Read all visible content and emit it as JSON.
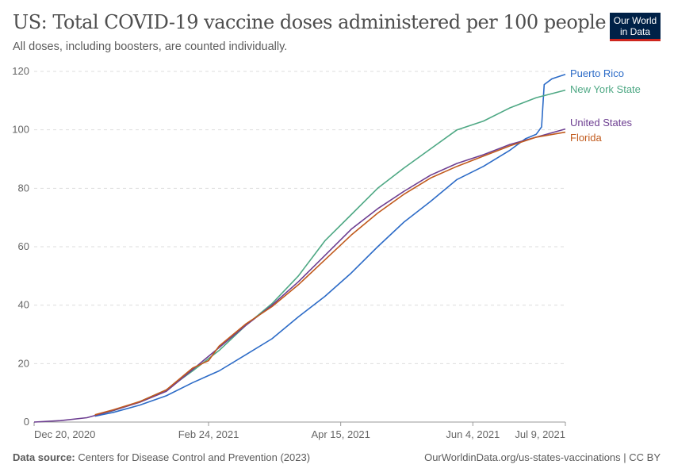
{
  "header": {
    "title": "US: Total COVID-19 vaccine doses administered per 100 people",
    "subtitle": "All doses, including boosters, are counted individually.",
    "logo_text": "Our World in Data"
  },
  "footer": {
    "source_label": "Data source:",
    "source": "Centers for Disease Control and Prevention (2023)",
    "url": "OurWorldinData.org/us-states-vaccinations | CC BY"
  },
  "chart_data": {
    "type": "line",
    "title": "US: Total COVID-19 vaccine doses administered per 100 people",
    "x_start": "2020-12-20",
    "x_end": "2021-07-09",
    "x_ticks": [
      "Dec 20, 2020",
      "Feb 24, 2021",
      "Apr 15, 2021",
      "Jun 4, 2021",
      "Jul 9, 2021"
    ],
    "x_tick_dates": [
      "2020-12-20",
      "2021-02-24",
      "2021-04-15",
      "2021-06-04",
      "2021-07-09"
    ],
    "y_ticks": [
      0,
      20,
      40,
      60,
      80,
      100,
      120
    ],
    "ylim": [
      0,
      120
    ],
    "grid": "horizontal dashed",
    "legend": "line-end labels, right",
    "series": [
      {
        "name": "Puerto Rico",
        "color": "#2c6bc7",
        "points": [
          [
            "2021-01-12",
            2.0
          ],
          [
            "2021-01-19",
            3.3
          ],
          [
            "2021-01-29",
            5.8
          ],
          [
            "2021-02-08",
            9
          ],
          [
            "2021-02-18",
            13.5
          ],
          [
            "2021-02-28",
            17.5
          ],
          [
            "2021-03-10",
            23
          ],
          [
            "2021-03-20",
            28.5
          ],
          [
            "2021-03-30",
            36
          ],
          [
            "2021-04-09",
            43
          ],
          [
            "2021-04-19",
            51
          ],
          [
            "2021-04-29",
            60
          ],
          [
            "2021-05-09",
            68.5
          ],
          [
            "2021-05-19",
            75.5
          ],
          [
            "2021-05-29",
            83
          ],
          [
            "2021-06-08",
            87.5
          ],
          [
            "2021-06-18",
            93
          ],
          [
            "2021-06-24",
            97
          ],
          [
            "2021-06-28",
            98.5
          ],
          [
            "2021-06-30",
            101
          ],
          [
            "2021-07-01",
            115.5
          ],
          [
            "2021-07-04",
            117.5
          ],
          [
            "2021-07-09",
            119
          ]
        ]
      },
      {
        "name": "New York State",
        "color": "#4ea884",
        "points": [
          [
            "2021-01-12",
            2.3
          ],
          [
            "2021-01-19",
            3.9
          ],
          [
            "2021-01-29",
            7
          ],
          [
            "2021-02-08",
            11
          ],
          [
            "2021-02-18",
            17.5
          ],
          [
            "2021-02-28",
            24.5
          ],
          [
            "2021-03-10",
            33
          ],
          [
            "2021-03-20",
            40.5
          ],
          [
            "2021-03-30",
            50
          ],
          [
            "2021-04-09",
            62
          ],
          [
            "2021-04-19",
            71
          ],
          [
            "2021-04-29",
            80
          ],
          [
            "2021-05-09",
            87
          ],
          [
            "2021-05-19",
            93.5
          ],
          [
            "2021-05-29",
            100
          ],
          [
            "2021-06-08",
            103
          ],
          [
            "2021-06-18",
            107.5
          ],
          [
            "2021-06-28",
            111
          ],
          [
            "2021-07-09",
            113.6
          ]
        ]
      },
      {
        "name": "United States",
        "color": "#6d3e91",
        "points": [
          [
            "2020-12-20",
            0
          ],
          [
            "2020-12-30",
            0.5
          ],
          [
            "2021-01-09",
            1.5
          ],
          [
            "2021-01-19",
            4
          ],
          [
            "2021-01-29",
            6.8
          ],
          [
            "2021-02-08",
            10.5
          ],
          [
            "2021-02-18",
            18
          ],
          [
            "2021-02-28",
            25.5
          ],
          [
            "2021-03-10",
            33
          ],
          [
            "2021-03-20",
            40
          ],
          [
            "2021-03-30",
            48
          ],
          [
            "2021-04-09",
            57
          ],
          [
            "2021-04-19",
            66
          ],
          [
            "2021-04-29",
            73
          ],
          [
            "2021-05-09",
            79
          ],
          [
            "2021-05-19",
            84.5
          ],
          [
            "2021-05-29",
            88.5
          ],
          [
            "2021-06-08",
            91.5
          ],
          [
            "2021-06-18",
            95
          ],
          [
            "2021-06-28",
            97.5
          ],
          [
            "2021-07-09",
            100.3
          ]
        ]
      },
      {
        "name": "Florida",
        "color": "#c15a1c",
        "points": [
          [
            "2021-01-12",
            2.5
          ],
          [
            "2021-01-19",
            4.2
          ],
          [
            "2021-01-29",
            7
          ],
          [
            "2021-02-08",
            11
          ],
          [
            "2021-02-18",
            18.5
          ],
          [
            "2021-02-24",
            21
          ],
          [
            "2021-02-28",
            26
          ],
          [
            "2021-03-10",
            33.5
          ],
          [
            "2021-03-20",
            39.5
          ],
          [
            "2021-03-30",
            47
          ],
          [
            "2021-04-09",
            55.5
          ],
          [
            "2021-04-19",
            64
          ],
          [
            "2021-04-29",
            71.5
          ],
          [
            "2021-05-09",
            78
          ],
          [
            "2021-05-19",
            83.5
          ],
          [
            "2021-05-29",
            87.5
          ],
          [
            "2021-06-08",
            91
          ],
          [
            "2021-06-18",
            94.5
          ],
          [
            "2021-06-28",
            97.5
          ],
          [
            "2021-07-09",
            99.2
          ]
        ]
      }
    ]
  }
}
